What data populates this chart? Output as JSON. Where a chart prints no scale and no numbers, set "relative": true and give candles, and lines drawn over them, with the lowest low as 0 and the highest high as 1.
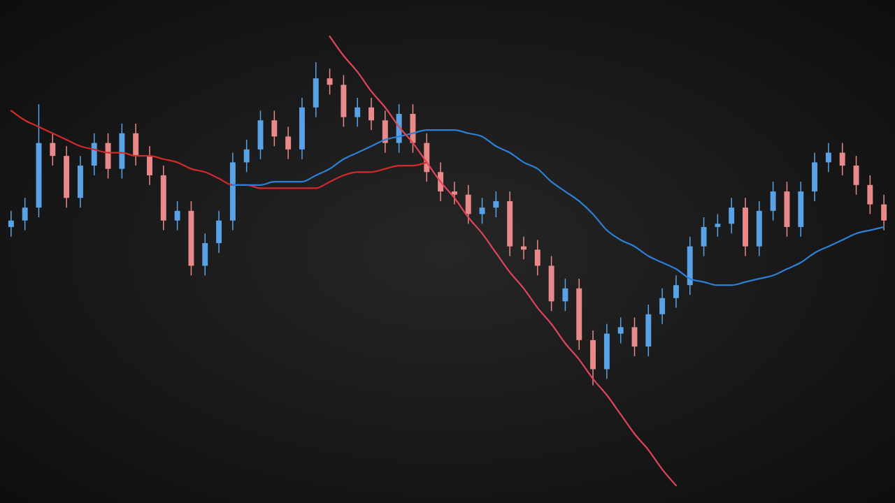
{
  "chart_data": {
    "type": "candlestick",
    "relative": true,
    "categories": [
      null,
      null,
      null,
      null,
      null,
      null,
      null,
      null,
      null,
      null,
      null,
      null,
      null,
      null,
      null,
      null,
      null,
      null,
      null,
      null,
      null,
      null,
      null,
      null,
      null,
      null,
      null,
      null,
      null,
      null,
      null,
      null,
      null,
      null,
      null,
      null,
      null,
      null,
      null,
      null,
      null,
      null,
      null,
      null,
      null,
      null,
      null,
      null,
      null,
      null,
      null,
      null,
      null,
      null,
      null,
      null,
      null,
      null,
      null,
      null,
      null,
      null,
      null,
      null
    ],
    "ohlc": [
      [
        0.49,
        0.54,
        0.46,
        0.51
      ],
      [
        0.51,
        0.58,
        0.48,
        0.55
      ],
      [
        0.55,
        0.87,
        0.52,
        0.75
      ],
      [
        0.75,
        0.78,
        0.68,
        0.71
      ],
      [
        0.71,
        0.74,
        0.55,
        0.58
      ],
      [
        0.58,
        0.71,
        0.55,
        0.68
      ],
      [
        0.68,
        0.78,
        0.65,
        0.75
      ],
      [
        0.75,
        0.78,
        0.64,
        0.67
      ],
      [
        0.67,
        0.81,
        0.64,
        0.78
      ],
      [
        0.78,
        0.81,
        0.68,
        0.71
      ],
      [
        0.71,
        0.74,
        0.62,
        0.65
      ],
      [
        0.65,
        0.68,
        0.48,
        0.51
      ],
      [
        0.51,
        0.57,
        0.48,
        0.54
      ],
      [
        0.54,
        0.57,
        0.34,
        0.37
      ],
      [
        0.37,
        0.47,
        0.34,
        0.44
      ],
      [
        0.44,
        0.54,
        0.41,
        0.51
      ],
      [
        0.51,
        0.72,
        0.48,
        0.69
      ],
      [
        0.69,
        0.76,
        0.66,
        0.73
      ],
      [
        0.73,
        0.85,
        0.7,
        0.82
      ],
      [
        0.82,
        0.85,
        0.74,
        0.77
      ],
      [
        0.77,
        0.8,
        0.7,
        0.73
      ],
      [
        0.73,
        0.89,
        0.7,
        0.86
      ],
      [
        0.86,
        1.0,
        0.83,
        0.95
      ],
      [
        0.95,
        0.98,
        0.9,
        0.93
      ],
      [
        0.93,
        0.96,
        0.8,
        0.83
      ],
      [
        0.83,
        0.89,
        0.8,
        0.86
      ],
      [
        0.86,
        0.89,
        0.79,
        0.82
      ],
      [
        0.82,
        0.85,
        0.72,
        0.75
      ],
      [
        0.75,
        0.87,
        0.72,
        0.84
      ],
      [
        0.84,
        0.87,
        0.72,
        0.75
      ],
      [
        0.75,
        0.78,
        0.63,
        0.66
      ],
      [
        0.66,
        0.69,
        0.57,
        0.6
      ],
      [
        0.6,
        0.63,
        0.56,
        0.59
      ],
      [
        0.59,
        0.62,
        0.5,
        0.53
      ],
      [
        0.53,
        0.58,
        0.5,
        0.55
      ],
      [
        0.55,
        0.6,
        0.52,
        0.57
      ],
      [
        0.57,
        0.6,
        0.4,
        0.43
      ],
      [
        0.43,
        0.46,
        0.39,
        0.42
      ],
      [
        0.42,
        0.45,
        0.34,
        0.37
      ],
      [
        0.37,
        0.4,
        0.23,
        0.26
      ],
      [
        0.26,
        0.33,
        0.23,
        0.3
      ],
      [
        0.3,
        0.33,
        0.11,
        0.14
      ],
      [
        0.14,
        0.17,
        0.0,
        0.05
      ],
      [
        0.05,
        0.19,
        0.02,
        0.16
      ],
      [
        0.16,
        0.21,
        0.13,
        0.18
      ],
      [
        0.18,
        0.21,
        0.09,
        0.12
      ],
      [
        0.12,
        0.25,
        0.09,
        0.22
      ],
      [
        0.22,
        0.3,
        0.19,
        0.27
      ],
      [
        0.27,
        0.34,
        0.24,
        0.31
      ],
      [
        0.31,
        0.46,
        0.28,
        0.43
      ],
      [
        0.43,
        0.52,
        0.4,
        0.49
      ],
      [
        0.49,
        0.53,
        0.46,
        0.5
      ],
      [
        0.5,
        0.58,
        0.47,
        0.55
      ],
      [
        0.55,
        0.58,
        0.4,
        0.43
      ],
      [
        0.43,
        0.57,
        0.4,
        0.54
      ],
      [
        0.54,
        0.63,
        0.51,
        0.6
      ],
      [
        0.6,
        0.63,
        0.46,
        0.49
      ],
      [
        0.49,
        0.63,
        0.46,
        0.6
      ],
      [
        0.6,
        0.72,
        0.57,
        0.69
      ],
      [
        0.69,
        0.75,
        0.66,
        0.72
      ],
      [
        0.72,
        0.75,
        0.65,
        0.68
      ],
      [
        0.68,
        0.71,
        0.59,
        0.62
      ],
      [
        0.62,
        0.65,
        0.53,
        0.56
      ],
      [
        0.56,
        0.59,
        0.48,
        0.51
      ]
    ],
    "colors": [
      "#5aa2e6",
      "#5aa2e6",
      "#5aa2e6",
      "#e88a8a",
      "#e88a8a",
      "#5aa2e6",
      "#5aa2e6",
      "#e88a8a",
      "#5aa2e6",
      "#e88a8a",
      "#e88a8a",
      "#e88a8a",
      "#5aa2e6",
      "#e88a8a",
      "#5aa2e6",
      "#5aa2e6",
      "#5aa2e6",
      "#5aa2e6",
      "#5aa2e6",
      "#e88a8a",
      "#e88a8a",
      "#5aa2e6",
      "#5aa2e6",
      "#e88a8a",
      "#e88a8a",
      "#5aa2e6",
      "#e88a8a",
      "#e88a8a",
      "#5aa2e6",
      "#e88a8a",
      "#e88a8a",
      "#e88a8a",
      "#e88a8a",
      "#e88a8a",
      "#5aa2e6",
      "#5aa2e6",
      "#e88a8a",
      "#e88a8a",
      "#e88a8a",
      "#e88a8a",
      "#5aa2e6",
      "#e88a8a",
      "#e88a8a",
      "#5aa2e6",
      "#5aa2e6",
      "#e88a8a",
      "#5aa2e6",
      "#5aa2e6",
      "#5aa2e6",
      "#5aa2e6",
      "#5aa2e6",
      "#5aa2e6",
      "#5aa2e6",
      "#e88a8a",
      "#5aa2e6",
      "#5aa2e6",
      "#e88a8a",
      "#5aa2e6",
      "#5aa2e6",
      "#5aa2e6",
      "#e88a8a",
      "#e88a8a",
      "#e88a8a",
      "#e88a8a"
    ],
    "series": [
      {
        "type": "line",
        "color": "#d42a2a",
        "values": [
          0.85,
          0.82,
          0.8,
          0.78,
          0.76,
          0.74,
          0.73,
          0.72,
          0.72,
          0.71,
          0.71,
          0.7,
          0.69,
          0.67,
          0.66,
          0.64,
          0.62,
          0.62,
          0.61,
          0.61,
          0.61,
          0.61,
          0.61,
          0.63,
          0.65,
          0.66,
          0.66,
          0.67,
          0.68,
          0.68,
          0.69,
          null,
          null,
          null,
          null,
          null,
          null,
          null,
          null,
          null,
          null,
          null,
          null,
          null,
          null,
          null,
          null,
          null,
          null,
          null,
          null,
          null,
          null,
          null,
          null,
          null,
          null,
          null,
          null,
          null,
          null,
          null,
          null,
          null
        ]
      },
      {
        "type": "line",
        "color": "#2f7fd6",
        "values": [
          null,
          null,
          null,
          null,
          null,
          null,
          null,
          null,
          null,
          null,
          null,
          null,
          null,
          null,
          null,
          null,
          0.62,
          0.62,
          0.62,
          0.63,
          0.63,
          0.63,
          0.65,
          0.67,
          0.7,
          0.72,
          0.74,
          0.76,
          0.77,
          0.78,
          0.79,
          0.79,
          0.79,
          0.78,
          0.77,
          0.74,
          0.72,
          0.69,
          0.67,
          0.63,
          0.6,
          0.57,
          0.53,
          0.48,
          0.45,
          0.43,
          0.4,
          0.38,
          0.36,
          0.33,
          0.32,
          0.31,
          0.31,
          0.32,
          0.33,
          0.34,
          0.36,
          0.38,
          0.41,
          0.43,
          0.45,
          0.47,
          0.48,
          0.49
        ]
      },
      {
        "type": "line",
        "color": "#e0455a",
        "values": [
          null,
          null,
          null,
          null,
          null,
          null,
          null,
          null,
          null,
          null,
          null,
          null,
          null,
          null,
          null,
          null,
          null,
          null,
          null,
          null,
          null,
          null,
          null,
          1.08,
          1.02,
          0.97,
          0.91,
          0.86,
          0.8,
          0.75,
          0.69,
          0.63,
          0.58,
          0.52,
          0.47,
          0.41,
          0.35,
          0.3,
          0.24,
          0.19,
          0.13,
          0.08,
          0.02,
          -0.03,
          -0.09,
          -0.15,
          -0.2,
          -0.26,
          -0.31,
          null,
          null,
          null,
          null,
          null,
          null,
          null,
          null,
          null,
          null,
          null,
          null,
          null,
          null,
          null
        ]
      }
    ]
  }
}
